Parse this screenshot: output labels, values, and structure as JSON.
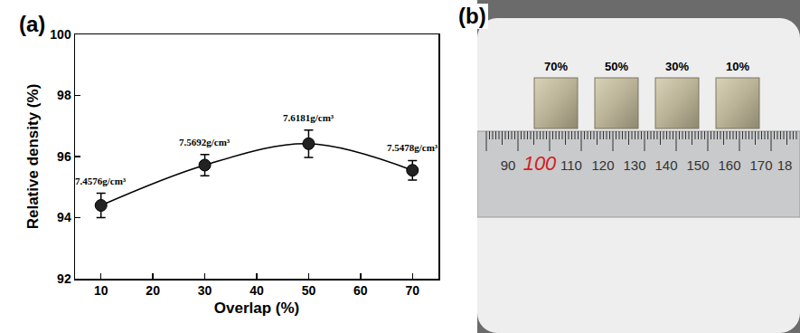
{
  "panel_labels": [
    "(a)",
    "(b)"
  ],
  "chart_data": {
    "type": "scatter",
    "x": [
      10,
      30,
      50,
      70
    ],
    "values": [
      94.4,
      95.72,
      96.42,
      95.55
    ],
    "errors": [
      0.4,
      0.35,
      0.45,
      0.32
    ],
    "annotations": [
      "7.4576g/cm³",
      "7.5692g/cm³",
      "7.6181g/cm³",
      "7.5478g/cm³"
    ],
    "x_label": "Overlap (%)",
    "y_label": "Relative density (%)",
    "xlim": [
      5,
      75
    ],
    "xticks": [
      10,
      20,
      30,
      40,
      50,
      60,
      70
    ],
    "ylim": [
      92,
      100
    ],
    "yticks": [
      92,
      94,
      96,
      98,
      100
    ],
    "color": "#000000",
    "marker": "circle",
    "line_style": "solid",
    "grid": false
  },
  "photo": {
    "samples": [
      "70%",
      "50%",
      "30%",
      "10%"
    ],
    "ruler_labels": [
      "90",
      "100",
      "110",
      "120",
      "130",
      "140",
      "150",
      "160",
      "170",
      "18"
    ],
    "ruler_highlight": "100"
  }
}
